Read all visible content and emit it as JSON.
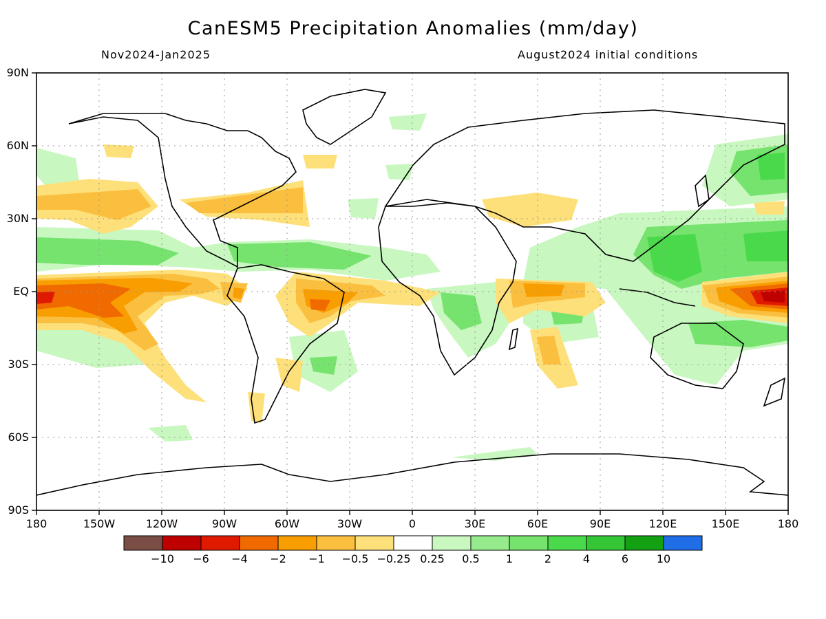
{
  "title": "CanESM5 Precipitation Anomalies (mm/day)",
  "period": "Nov2024-Jan2025",
  "init_conditions": "August2024 initial conditions",
  "lat_labels": [
    "90N",
    "60N",
    "30N",
    "EQ",
    "30S",
    "60S",
    "90S"
  ],
  "lon_labels": [
    "180",
    "150W",
    "120W",
    "90W",
    "60W",
    "30W",
    "0",
    "30E",
    "60E",
    "90E",
    "120E",
    "150E",
    "180"
  ],
  "colorbar": {
    "colors": [
      "#7a4e45",
      "#bf0000",
      "#e01a00",
      "#f06a00",
      "#f89e00",
      "#fbbf40",
      "#fde07a",
      "#ffffff",
      "#c8f7c0",
      "#96ec8c",
      "#76e36e",
      "#4ad94a",
      "#34c634",
      "#13a013",
      "#1f6ee8"
    ],
    "labels": [
      "−10",
      "−6",
      "−4",
      "−2",
      "−1",
      "−0.5",
      "−0.25",
      "0.25",
      "0.5",
      "1",
      "2",
      "4",
      "6",
      "10"
    ]
  }
}
